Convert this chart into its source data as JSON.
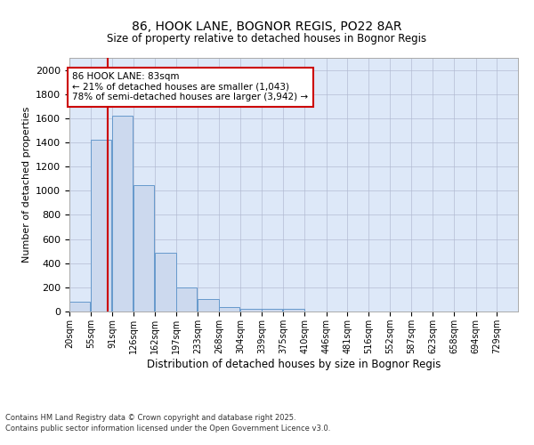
{
  "title1": "86, HOOK LANE, BOGNOR REGIS, PO22 8AR",
  "title2": "Size of property relative to detached houses in Bognor Regis",
  "xlabel": "Distribution of detached houses by size in Bognor Regis",
  "ylabel": "Number of detached properties",
  "bins": [
    20,
    55,
    91,
    126,
    162,
    197,
    233,
    268,
    304,
    339,
    375,
    410,
    446,
    481,
    516,
    552,
    587,
    623,
    658,
    694,
    729
  ],
  "bar_heights": [
    80,
    1420,
    1620,
    1050,
    490,
    200,
    100,
    35,
    25,
    20,
    20,
    0,
    0,
    0,
    0,
    0,
    0,
    0,
    0,
    0,
    0
  ],
  "bar_color": "#ccd9ee",
  "bar_edge_color": "#6699cc",
  "red_line_x": 83,
  "annotation_title": "86 HOOK LANE: 83sqm",
  "annotation_line1": "← 21% of detached houses are smaller (1,043)",
  "annotation_line2": "78% of semi-detached houses are larger (3,942) →",
  "annotation_box_color": "#ffffff",
  "annotation_box_edge": "#cc0000",
  "red_line_color": "#cc0000",
  "ylim": [
    0,
    2100
  ],
  "yticks": [
    0,
    200,
    400,
    600,
    800,
    1000,
    1200,
    1400,
    1600,
    1800,
    2000
  ],
  "background_color": "#dde8f8",
  "grid_color": "#b0b8d0",
  "footer1": "Contains HM Land Registry data © Crown copyright and database right 2025.",
  "footer2": "Contains public sector information licensed under the Open Government Licence v3.0."
}
